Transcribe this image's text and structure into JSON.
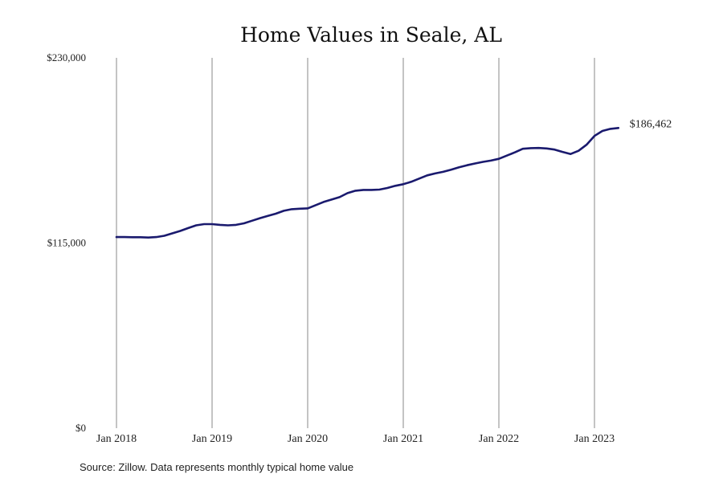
{
  "chart_data": {
    "type": "line",
    "title": "Home Values in Seale, AL",
    "xlabel": "",
    "ylabel": "",
    "x_tick_labels": [
      "Jan 2018",
      "Jan 2019",
      "Jan 2020",
      "Jan 2021",
      "Jan 2022",
      "Jan 2023"
    ],
    "y_tick_labels": [
      "$0",
      "$115,000",
      "$230,000"
    ],
    "ylim": [
      0,
      230000
    ],
    "xlim": [
      "2018-01",
      "2023-04"
    ],
    "grid": "vertical",
    "line_color": "#1a1a6e",
    "end_label": "$186,462",
    "series": [
      {
        "x": [
          "2018-01",
          "2018-02",
          "2018-03",
          "2018-04",
          "2018-05",
          "2018-06",
          "2018-07",
          "2018-08",
          "2018-09",
          "2018-10",
          "2018-11",
          "2018-12",
          "2019-01",
          "2019-02",
          "2019-03",
          "2019-04",
          "2019-05",
          "2019-06",
          "2019-07",
          "2019-08",
          "2019-09",
          "2019-10",
          "2019-11",
          "2019-12",
          "2020-01",
          "2020-02",
          "2020-03",
          "2020-04",
          "2020-05",
          "2020-06",
          "2020-07",
          "2020-08",
          "2020-09",
          "2020-10",
          "2020-11",
          "2020-12",
          "2021-01",
          "2021-02",
          "2021-03",
          "2021-04",
          "2021-05",
          "2021-06",
          "2021-07",
          "2021-08",
          "2021-09",
          "2021-10",
          "2021-11",
          "2021-12",
          "2022-01",
          "2022-02",
          "2022-03",
          "2022-04",
          "2022-05",
          "2022-06",
          "2022-07",
          "2022-08",
          "2022-09",
          "2022-10",
          "2022-11",
          "2022-12",
          "2023-01",
          "2023-02",
          "2023-03",
          "2023-04"
        ],
        "values": [
          118700,
          118700,
          118600,
          118600,
          118400,
          118700,
          119500,
          121000,
          122500,
          124300,
          126000,
          126700,
          126700,
          126300,
          126000,
          126300,
          127200,
          128800,
          130400,
          131800,
          133200,
          135000,
          136000,
          136300,
          136500,
          138500,
          140500,
          142000,
          143500,
          146000,
          147500,
          148000,
          148000,
          148200,
          149200,
          150500,
          151500,
          153000,
          155000,
          157000,
          158200,
          159200,
          160500,
          162000,
          163300,
          164400,
          165400,
          166200,
          167300,
          169300,
          171300,
          173500,
          173900,
          174000,
          173700,
          173000,
          171600,
          170300,
          172300,
          176000,
          181500,
          184600,
          185900,
          186462
        ]
      }
    ]
  },
  "source_note": "Source: Zillow. Data represents monthly typical home value"
}
